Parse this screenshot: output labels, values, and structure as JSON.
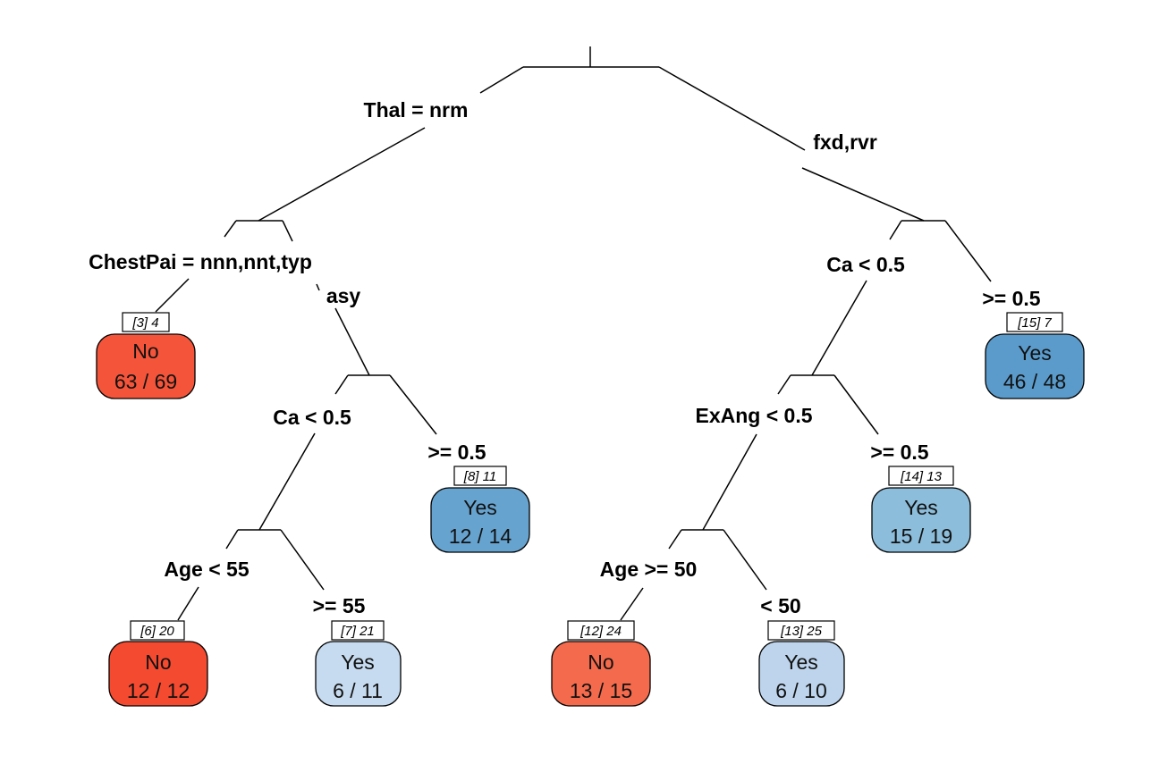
{
  "tree": {
    "splits": {
      "thal": "Thal = nrm",
      "chestpain": "ChestPai = nnn,nnt,typ",
      "ca_left": "Ca < 0.5",
      "age_left": "Age < 55",
      "ca_right": "Ca < 0.5",
      "exang": "ExAng < 0.5",
      "age_right": "Age >= 50"
    },
    "branches": {
      "thal_right": "fxd,rvr",
      "chestpain_right": "asy",
      "ca_left_right": ">= 0.5",
      "age_left_right": ">= 55",
      "ca_right_right": ">= 0.5",
      "exang_right": ">= 0.5",
      "age_right_right": "< 50"
    },
    "leaves": [
      {
        "id": "[3] 4",
        "class": "No",
        "count": "63 / 69",
        "color": "#F4553A"
      },
      {
        "id": "[6] 20",
        "class": "No",
        "count": "12 / 12",
        "color": "#F34A30"
      },
      {
        "id": "[7] 21",
        "class": "Yes",
        "count": "6 / 11",
        "color": "#C6DBEF"
      },
      {
        "id": "[8] 11",
        "class": "Yes",
        "count": "12 / 14",
        "color": "#67A3CF"
      },
      {
        "id": "[12] 24",
        "class": "No",
        "count": "13 / 15",
        "color": "#F46A4C"
      },
      {
        "id": "[13] 25",
        "class": "Yes",
        "count": "6 / 10",
        "color": "#BDD4EC"
      },
      {
        "id": "[14] 13",
        "class": "Yes",
        "count": "15 / 19",
        "color": "#8CBDDA"
      },
      {
        "id": "[15] 7",
        "class": "Yes",
        "count": "46 / 48",
        "color": "#5A9BCB"
      }
    ]
  }
}
